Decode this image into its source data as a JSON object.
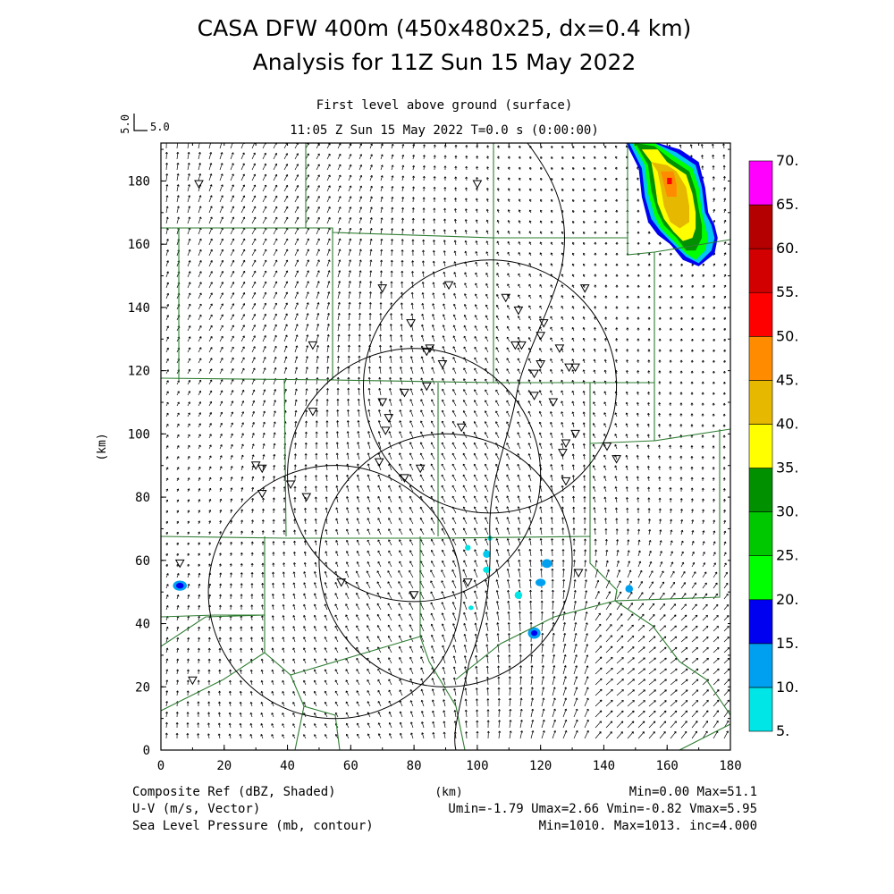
{
  "title": {
    "line1": "CASA DFW 400m (450x480x25, dx=0.4 km)",
    "line2": "Analysis for 11Z Sun 15 May 2022"
  },
  "subtitle": {
    "level": "First level above ground (surface)",
    "time": "11:05 Z Sun 15 May 2022    T=0.0 s (0:00:00)"
  },
  "vector_key": {
    "label": "5.0",
    "vertical_label": "5.0"
  },
  "axes": {
    "x_label": "(km)",
    "y_label": "(km)",
    "x_ticks": [
      "0",
      "20",
      "40",
      "60",
      "80",
      "100",
      "120",
      "140",
      "160",
      "180"
    ],
    "y_ticks": [
      "0",
      "20",
      "40",
      "60",
      "80",
      "100",
      "120",
      "140",
      "160",
      "180"
    ],
    "x_range": [
      0,
      180
    ],
    "y_range": [
      0,
      192
    ]
  },
  "colorbar": {
    "labels": [
      "5.",
      "10.",
      "15.",
      "20.",
      "25.",
      "30.",
      "35.",
      "40.",
      "45.",
      "50.",
      "55.",
      "60.",
      "65.",
      "70."
    ],
    "colors": [
      "#00e5e5",
      "#00a0f0",
      "#0000f0",
      "#00ff00",
      "#00c800",
      "#009000",
      "#ffff00",
      "#e6b800",
      "#ff8c00",
      "#ff0000",
      "#d20000",
      "#b40000",
      "#ff00ff"
    ]
  },
  "footer": {
    "field1": "Composite Ref (dBZ, Shaded)",
    "field2": "U-V (m/s, Vector)",
    "field3": "Sea Level Pressure (mb, contour)",
    "units": "(km)",
    "stats1": "Min=0.00 Max=51.1",
    "stats2": "Umin=-1.79 Umax=2.66 Vmin=-0.82 Vmax=5.95",
    "stats3": "Min=1010. Max=1013. inc=4.000"
  },
  "radar_rings": [
    {
      "x": 55,
      "y": 50,
      "r": 40
    },
    {
      "x": 90,
      "y": 60,
      "r": 40
    },
    {
      "x": 80,
      "y": 87,
      "r": 40
    },
    {
      "x": 104,
      "y": 115,
      "r": 40
    }
  ],
  "stations": [
    [
      12,
      179
    ],
    [
      100,
      179
    ],
    [
      70,
      146
    ],
    [
      91,
      147
    ],
    [
      109,
      143
    ],
    [
      134,
      146
    ],
    [
      113,
      139
    ],
    [
      79,
      135
    ],
    [
      121,
      135
    ],
    [
      48,
      128
    ],
    [
      120,
      131
    ],
    [
      112,
      128
    ],
    [
      114,
      128
    ],
    [
      126,
      127
    ],
    [
      84,
      126
    ],
    [
      85,
      127
    ],
    [
      89,
      122
    ],
    [
      120,
      122
    ],
    [
      129,
      121
    ],
    [
      131,
      121
    ],
    [
      118,
      119
    ],
    [
      84,
      115
    ],
    [
      77,
      113
    ],
    [
      70,
      110
    ],
    [
      118,
      112
    ],
    [
      124,
      110
    ],
    [
      48,
      107
    ],
    [
      72,
      105
    ],
    [
      95,
      102
    ],
    [
      71,
      101
    ],
    [
      131,
      100
    ],
    [
      128,
      97
    ],
    [
      127,
      94
    ],
    [
      141,
      96
    ],
    [
      144,
      92
    ],
    [
      69,
      91
    ],
    [
      30,
      90
    ],
    [
      32,
      89
    ],
    [
      82,
      89
    ],
    [
      77,
      86
    ],
    [
      128,
      85
    ],
    [
      32,
      81
    ],
    [
      41,
      84
    ],
    [
      46,
      80
    ],
    [
      6,
      59
    ],
    [
      132,
      56
    ],
    [
      57,
      53
    ],
    [
      97,
      53
    ],
    [
      80,
      49
    ],
    [
      10,
      22
    ]
  ],
  "echoes": [
    {
      "x": 6,
      "y": 52,
      "rx": 2.2,
      "ry": 1.6,
      "color": "#00a0f0"
    },
    {
      "x": 6,
      "y": 52,
      "rx": 1.2,
      "ry": 0.9,
      "color": "#0000f0"
    },
    {
      "x": 122,
      "y": 59,
      "rx": 1.6,
      "ry": 1.4,
      "color": "#00a0f0"
    },
    {
      "x": 120,
      "y": 53,
      "rx": 1.6,
      "ry": 1.2,
      "color": "#00a0f0"
    },
    {
      "x": 118,
      "y": 37,
      "rx": 2.0,
      "ry": 1.8,
      "color": "#00a0f0"
    },
    {
      "x": 118,
      "y": 37,
      "rx": 1.0,
      "ry": 0.9,
      "color": "#0000f0"
    },
    {
      "x": 113,
      "y": 49,
      "rx": 1.2,
      "ry": 1.2,
      "color": "#00e5e5"
    },
    {
      "x": 103,
      "y": 62,
      "rx": 1.2,
      "ry": 1.2,
      "color": "#00c8ee"
    },
    {
      "x": 103,
      "y": 57,
      "rx": 1.2,
      "ry": 1.0,
      "color": "#00e5e5"
    },
    {
      "x": 104,
      "y": 67,
      "rx": 0.8,
      "ry": 0.8,
      "color": "#00e5e5"
    },
    {
      "x": 97,
      "y": 64,
      "rx": 0.9,
      "ry": 0.9,
      "color": "#00e5e5"
    },
    {
      "x": 98,
      "y": 45,
      "rx": 0.8,
      "ry": 0.7,
      "color": "#00e5e5"
    },
    {
      "x": 148,
      "y": 51,
      "rx": 1.2,
      "ry": 1.2,
      "color": "#00a0f0"
    }
  ],
  "storm": {
    "layers": [
      {
        "color": "#0000f0",
        "pts": [
          [
            147,
            192
          ],
          [
            157,
            192
          ],
          [
            164,
            190
          ],
          [
            170,
            186
          ],
          [
            172,
            178
          ],
          [
            173,
            170
          ],
          [
            175,
            166
          ],
          [
            176,
            162
          ],
          [
            175,
            157
          ],
          [
            170,
            153
          ],
          [
            165,
            155
          ],
          [
            161,
            160
          ],
          [
            157,
            163
          ],
          [
            154,
            167
          ],
          [
            152,
            175
          ],
          [
            151,
            184
          ]
        ]
      },
      {
        "color": "#00c8ee",
        "pts": [
          [
            148,
            192
          ],
          [
            156,
            192
          ],
          [
            163,
            189
          ],
          [
            169,
            185
          ],
          [
            171,
            178
          ],
          [
            172,
            170
          ],
          [
            174,
            166
          ],
          [
            175,
            162
          ],
          [
            174,
            158
          ],
          [
            170,
            154
          ],
          [
            166,
            156
          ],
          [
            162,
            160
          ],
          [
            158,
            164
          ],
          [
            155,
            168
          ],
          [
            153,
            175
          ],
          [
            152,
            184
          ]
        ]
      },
      {
        "color": "#00ff00",
        "pts": [
          [
            149,
            192
          ],
          [
            156,
            192
          ],
          [
            162,
            188
          ],
          [
            168,
            184
          ],
          [
            170,
            178
          ],
          [
            171,
            170
          ],
          [
            172,
            166
          ],
          [
            173,
            162
          ],
          [
            172,
            158
          ],
          [
            169,
            155
          ],
          [
            166,
            157
          ],
          [
            162,
            161
          ],
          [
            158,
            165
          ],
          [
            156,
            169
          ],
          [
            154,
            176
          ],
          [
            153,
            185
          ]
        ]
      },
      {
        "color": "#009000",
        "pts": [
          [
            150,
            192
          ],
          [
            156,
            191
          ],
          [
            161,
            187
          ],
          [
            167,
            183
          ],
          [
            169,
            177
          ],
          [
            170,
            171
          ],
          [
            171,
            166
          ],
          [
            171,
            162
          ],
          [
            169,
            158
          ],
          [
            166,
            158
          ],
          [
            163,
            162
          ],
          [
            159,
            166
          ],
          [
            157,
            170
          ],
          [
            155,
            177
          ],
          [
            154,
            185
          ]
        ]
      },
      {
        "color": "#ffff00",
        "pts": [
          [
            152,
            190
          ],
          [
            157,
            190
          ],
          [
            160,
            186
          ],
          [
            166,
            182
          ],
          [
            168,
            176
          ],
          [
            169,
            170
          ],
          [
            169,
            165
          ],
          [
            168,
            162
          ],
          [
            165,
            161
          ],
          [
            162,
            164
          ],
          [
            159,
            168
          ],
          [
            157,
            173
          ],
          [
            156,
            180
          ],
          [
            155,
            186
          ]
        ]
      },
      {
        "color": "#e6b800",
        "pts": [
          [
            155,
            186
          ],
          [
            160,
            185
          ],
          [
            163,
            183
          ],
          [
            166,
            178
          ],
          [
            167,
            172
          ],
          [
            167,
            167
          ],
          [
            164,
            165
          ],
          [
            161,
            167
          ],
          [
            159,
            172
          ],
          [
            158,
            178
          ],
          [
            157,
            183
          ]
        ]
      },
      {
        "color": "#ff8c00",
        "pts": [
          [
            158,
            183
          ],
          [
            162,
            183
          ],
          [
            163,
            179
          ],
          [
            163,
            175
          ],
          [
            160,
            175
          ],
          [
            159,
            179
          ]
        ]
      },
      {
        "color": "#ff0000",
        "pts": [
          [
            160,
            181
          ],
          [
            161.5,
            181
          ],
          [
            161.5,
            179
          ],
          [
            160,
            179
          ]
        ]
      }
    ]
  }
}
